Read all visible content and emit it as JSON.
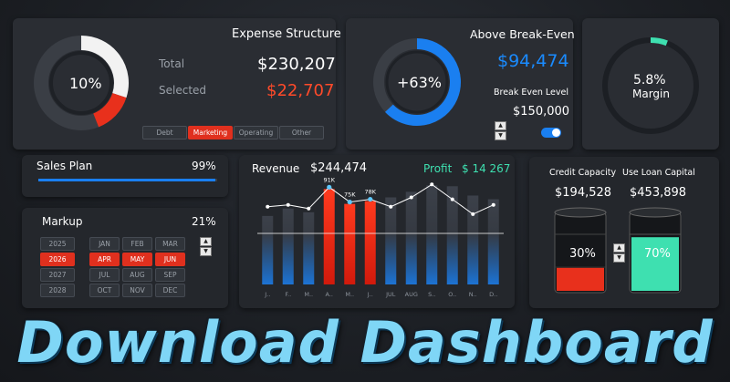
{
  "expense": {
    "title": "Expense Structure",
    "donut_pct": "10%",
    "selected_fraction": 0.1,
    "total_label": "Total",
    "total_value": "$230,207",
    "selected_label": "Selected",
    "selected_value": "$22,707",
    "tabs": [
      "Debt",
      "Marketing",
      "Operating",
      "Other"
    ],
    "active_tab": "Marketing"
  },
  "breakeven": {
    "title": "Above Break-Even",
    "ring_pct": "+63%",
    "ring_fraction": 0.63,
    "value": "$94,474",
    "level_label": "Break Even Level",
    "level_value": "$150,000"
  },
  "margin": {
    "value": "5.8%",
    "label": "Margin",
    "fraction": 0.058
  },
  "sales_plan": {
    "label": "Sales Plan",
    "value": "99%",
    "fraction": 0.99
  },
  "markup": {
    "label": "Markup",
    "value": "21%",
    "years": [
      "2025",
      "2026",
      "2027",
      "2028"
    ],
    "selected_year": "2026",
    "months": [
      "JAN",
      "FEB",
      "MAR",
      "APR",
      "MAY",
      "JUN",
      "JUL",
      "AUG",
      "SEP",
      "OCT",
      "NOV",
      "DEC"
    ],
    "selected_months": [
      "APR",
      "MAY",
      "JUN"
    ]
  },
  "revenue": {
    "label": "Revenue",
    "value": "$244,474",
    "profit_label": "Profit",
    "profit_value": "$ 14 267"
  },
  "capacity": {
    "credit_label": "Credit Capacity",
    "credit_value": "$194,528",
    "credit_pct": "30%",
    "credit_fraction": 0.3,
    "loan_label": "Use Loan Capital",
    "loan_value": "$453,898",
    "loan_pct": "70%",
    "loan_fraction": 0.7
  },
  "banner": "Download Dashboard",
  "chart_data": {
    "type": "bar",
    "categories": [
      "J..",
      "F..",
      "M..",
      "A..",
      "M..",
      "J..",
      "JUL",
      "AUG",
      "S..",
      "O..",
      "N..",
      "D.."
    ],
    "series": [
      {
        "values": [
          62,
          70,
          66,
          91,
          75,
          78,
          82,
          88,
          95,
          94,
          84,
          80
        ]
      },
      {
        "values": [
          70,
          72,
          68,
          91,
          75,
          78,
          70,
          80,
          94,
          78,
          62,
          72
        ]
      }
    ],
    "data_labels": {
      "3": "91K",
      "4": "75K",
      "5": "78K"
    },
    "highlight": [
      3,
      4,
      5
    ],
    "ylim": [
      0,
      110
    ],
    "colors": {
      "bar": "#3a3f47",
      "highlight": "#e8301c",
      "line": "#ffffff",
      "baseline": "#ffffff"
    }
  },
  "colors": {
    "accent_blue": "#1a7ff0",
    "accent_red": "#ff4a2a",
    "accent_green": "#3ee0b0"
  }
}
